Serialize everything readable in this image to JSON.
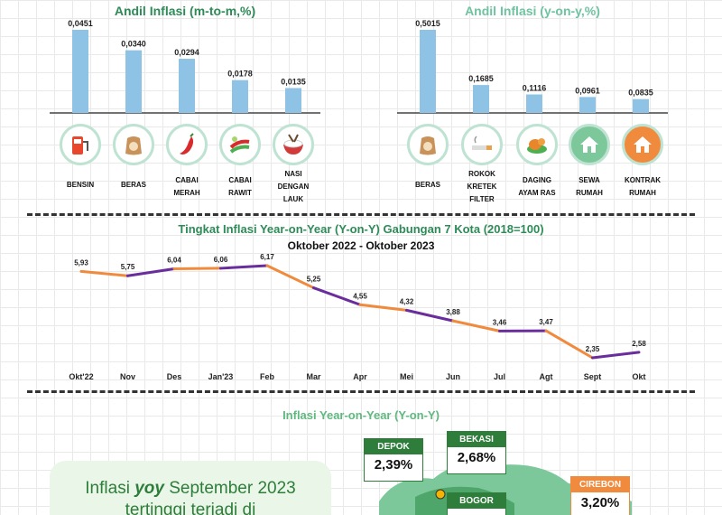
{
  "mtm": {
    "title": "Andil Inflasi (m-to-m,%)",
    "items": [
      {
        "value_label": "0,0451",
        "name": "BENSIN",
        "icon": "fuel-pump-icon"
      },
      {
        "value_label": "0,0340",
        "name": "BERAS",
        "icon": "rice-sack-icon"
      },
      {
        "value_label": "0,0294",
        "name": "CABAI MERAH",
        "icon": "red-chili-icon"
      },
      {
        "value_label": "0,0178",
        "name": "CABAI RAWIT",
        "icon": "bird-chili-icon"
      },
      {
        "value_label": "0,0135",
        "name": "NASI DENGAN LAUK",
        "icon": "rice-bowl-icon"
      }
    ]
  },
  "yoy_items": {
    "title": "Andil Inflasi (y-on-y,%)",
    "items": [
      {
        "value_label": "0,5015",
        "name": "BERAS",
        "icon": "rice-sack-icon"
      },
      {
        "value_label": "0,1685",
        "name": "ROKOK KRETEK FILTER",
        "icon": "cigarette-icon"
      },
      {
        "value_label": "0,1116",
        "name": "DAGING AYAM RAS",
        "icon": "chicken-icon"
      },
      {
        "value_label": "0,0961",
        "name": "SEWA RUMAH",
        "icon": "house-rent-icon"
      },
      {
        "value_label": "0,0835",
        "name": "KONTRAK RUMAH",
        "icon": "house-contract-icon"
      }
    ]
  },
  "line": {
    "title": "Tingkat Inflasi Year-on-Year (Y-on-Y) Gabungan 7 Kota (2018=100)",
    "subtitle": "Oktober 2022 -  Oktober 2023",
    "value_labels": [
      "5,93",
      "5,75",
      "6,04",
      "6,06",
      "6,17",
      "5,25",
      "4,55",
      "4,32",
      "3,88",
      "3,46",
      "3,47",
      "2,35",
      "2,58"
    ]
  },
  "map_section": {
    "title": "Inflasi Year-on-Year (Y-on-Y)",
    "callout_line1": "Inflasi yoy September 2023",
    "callout_line2": "tertinggi terjadi di",
    "cities": [
      {
        "name": "DEPOK",
        "value": "2,39%",
        "color": "#2e7d3a"
      },
      {
        "name": "BEKASI",
        "value": "2,68%",
        "color": "#2e7d3a"
      },
      {
        "name": "BOGOR",
        "value": "",
        "color": "#2e7d3a"
      },
      {
        "name": "CIREBON",
        "value": "3,20%",
        "color": "#f08a3c"
      }
    ]
  },
  "colors": {
    "bar": "#8ec3e6",
    "line_orange": "#f08a3c",
    "line_purple": "#6a2d9c",
    "title_green": "#2e8b57"
  },
  "chart_data": [
    {
      "type": "bar",
      "title": "Andil Inflasi (m-to-m,%)",
      "categories": [
        "BENSIN",
        "BERAS",
        "CABAI MERAH",
        "CABAI RAWIT",
        "NASI DENGAN LAUK"
      ],
      "values": [
        0.0451,
        0.034,
        0.0294,
        0.0178,
        0.0135
      ]
    },
    {
      "type": "bar",
      "title": "Andil Inflasi (y-on-y,%)",
      "categories": [
        "BERAS",
        "ROKOK KRETEK FILTER",
        "DAGING AYAM RAS",
        "SEWA RUMAH",
        "KONTRAK RUMAH"
      ],
      "values": [
        0.5015,
        0.1685,
        0.1116,
        0.0961,
        0.0835
      ]
    },
    {
      "type": "line",
      "title": "Tingkat Inflasi Year-on-Year (Y-on-Y) Gabungan 7 Kota (2018=100)",
      "subtitle": "Oktober 2022 -  Oktober 2023",
      "categories": [
        "Okt'22",
        "Nov",
        "Des",
        "Jan'23",
        "Feb",
        "Mar",
        "Apr",
        "Mei",
        "Jun",
        "Jul",
        "Agt",
        "Sept",
        "Okt"
      ],
      "values": [
        5.93,
        5.75,
        6.04,
        6.06,
        6.17,
        5.25,
        4.55,
        4.32,
        3.88,
        3.46,
        3.47,
        2.35,
        2.58
      ],
      "grid": false
    }
  ]
}
